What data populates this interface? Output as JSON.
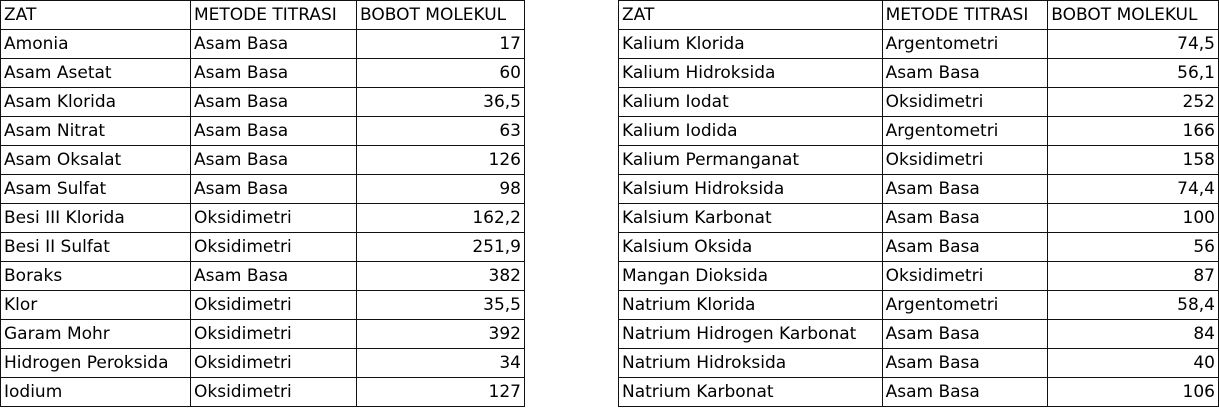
{
  "left_table": {
    "headers": [
      "ZAT",
      "METODE TITRASI",
      "BOBOT MOLEKUL"
    ],
    "rows": [
      [
        "Amonia",
        "Asam Basa",
        "17"
      ],
      [
        "Asam Asetat",
        "Asam Basa",
        "60"
      ],
      [
        "Asam Klorida",
        "Asam Basa",
        "36,5"
      ],
      [
        "Asam Nitrat",
        "Asam Basa",
        "63"
      ],
      [
        "Asam Oksalat",
        "Asam Basa",
        "126"
      ],
      [
        "Asam Sulfat",
        "Asam Basa",
        "98"
      ],
      [
        "Besi III Klorida",
        "Oksidimetri",
        "162,2"
      ],
      [
        "Besi II Sulfat",
        "Oksidimetri",
        "251,9"
      ],
      [
        "Boraks",
        "Asam Basa",
        "382"
      ],
      [
        "Klor",
        "Oksidimetri",
        "35,5"
      ],
      [
        "Garam Mohr",
        "Oksidimetri",
        "392"
      ],
      [
        "Hidrogen Peroksida",
        "Oksidimetri",
        "34"
      ],
      [
        "Iodium",
        "Oksidimetri",
        "127"
      ]
    ]
  },
  "right_table": {
    "headers": [
      "ZAT",
      "METODE TITRASI",
      "BOBOT MOLEKUL"
    ],
    "rows": [
      [
        "Kalium Klorida",
        "Argentometri",
        "74,5"
      ],
      [
        "Kalium Hidroksida",
        "Asam Basa",
        "56,1"
      ],
      [
        "Kalium Iodat",
        "Oksidimetri",
        "252"
      ],
      [
        "Kalium Iodida",
        "Argentometri",
        "166"
      ],
      [
        "Kalium Permanganat",
        "Oksidimetri",
        "158"
      ],
      [
        "Kalsium Hidroksida",
        "Asam Basa",
        "74,4"
      ],
      [
        "Kalsium Karbonat",
        "Asam Basa",
        "100"
      ],
      [
        "Kalsium Oksida",
        "Asam Basa",
        "56"
      ],
      [
        "Mangan Dioksida",
        "Oksidimetri",
        "87"
      ],
      [
        "Natrium Klorida",
        "Argentometri",
        "58,4"
      ],
      [
        "Natrium Hidrogen Karbonat",
        "Asam Basa",
        "84"
      ],
      [
        "Natrium Hidroksida",
        "Asam Basa",
        "40"
      ],
      [
        "Natrium Karbonat",
        "Asam Basa",
        "106"
      ]
    ]
  }
}
